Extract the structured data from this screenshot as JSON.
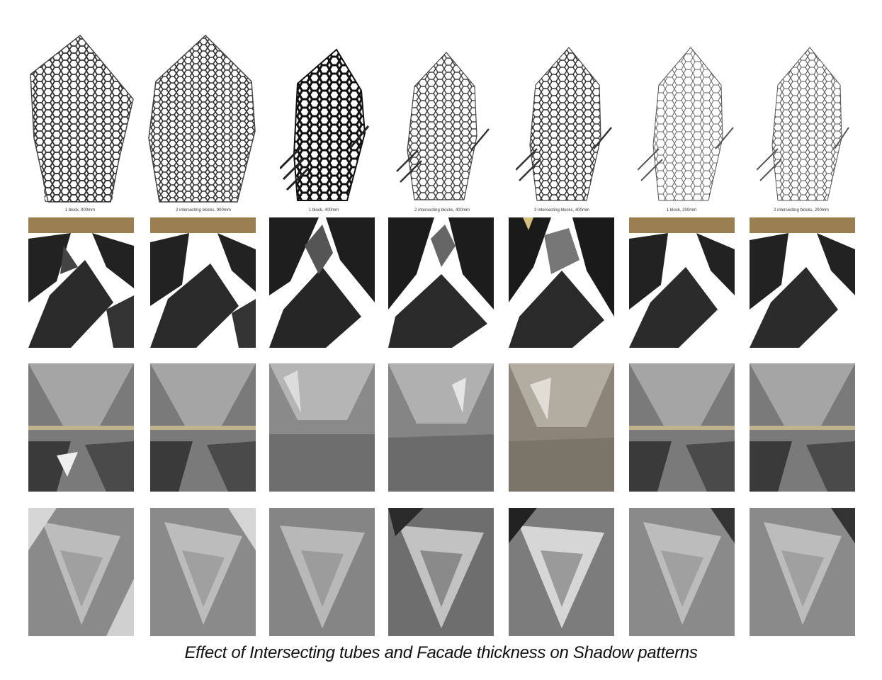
{
  "figure": {
    "caption": "Effect of Intersecting tubes and Facade thickness on Shadow patterns",
    "columns": [
      {
        "label": "1 block, 900mm"
      },
      {
        "label": "2 intersecting blocks, 900mm"
      },
      {
        "label": "1 block, 400mm"
      },
      {
        "label": "2 intersecting blocks, 400mm"
      },
      {
        "label": "3 intersecting blocks, 400mm"
      },
      {
        "label": "1 block, 200mm"
      },
      {
        "label": "2 intersecting blocks, 200mm"
      }
    ]
  }
}
